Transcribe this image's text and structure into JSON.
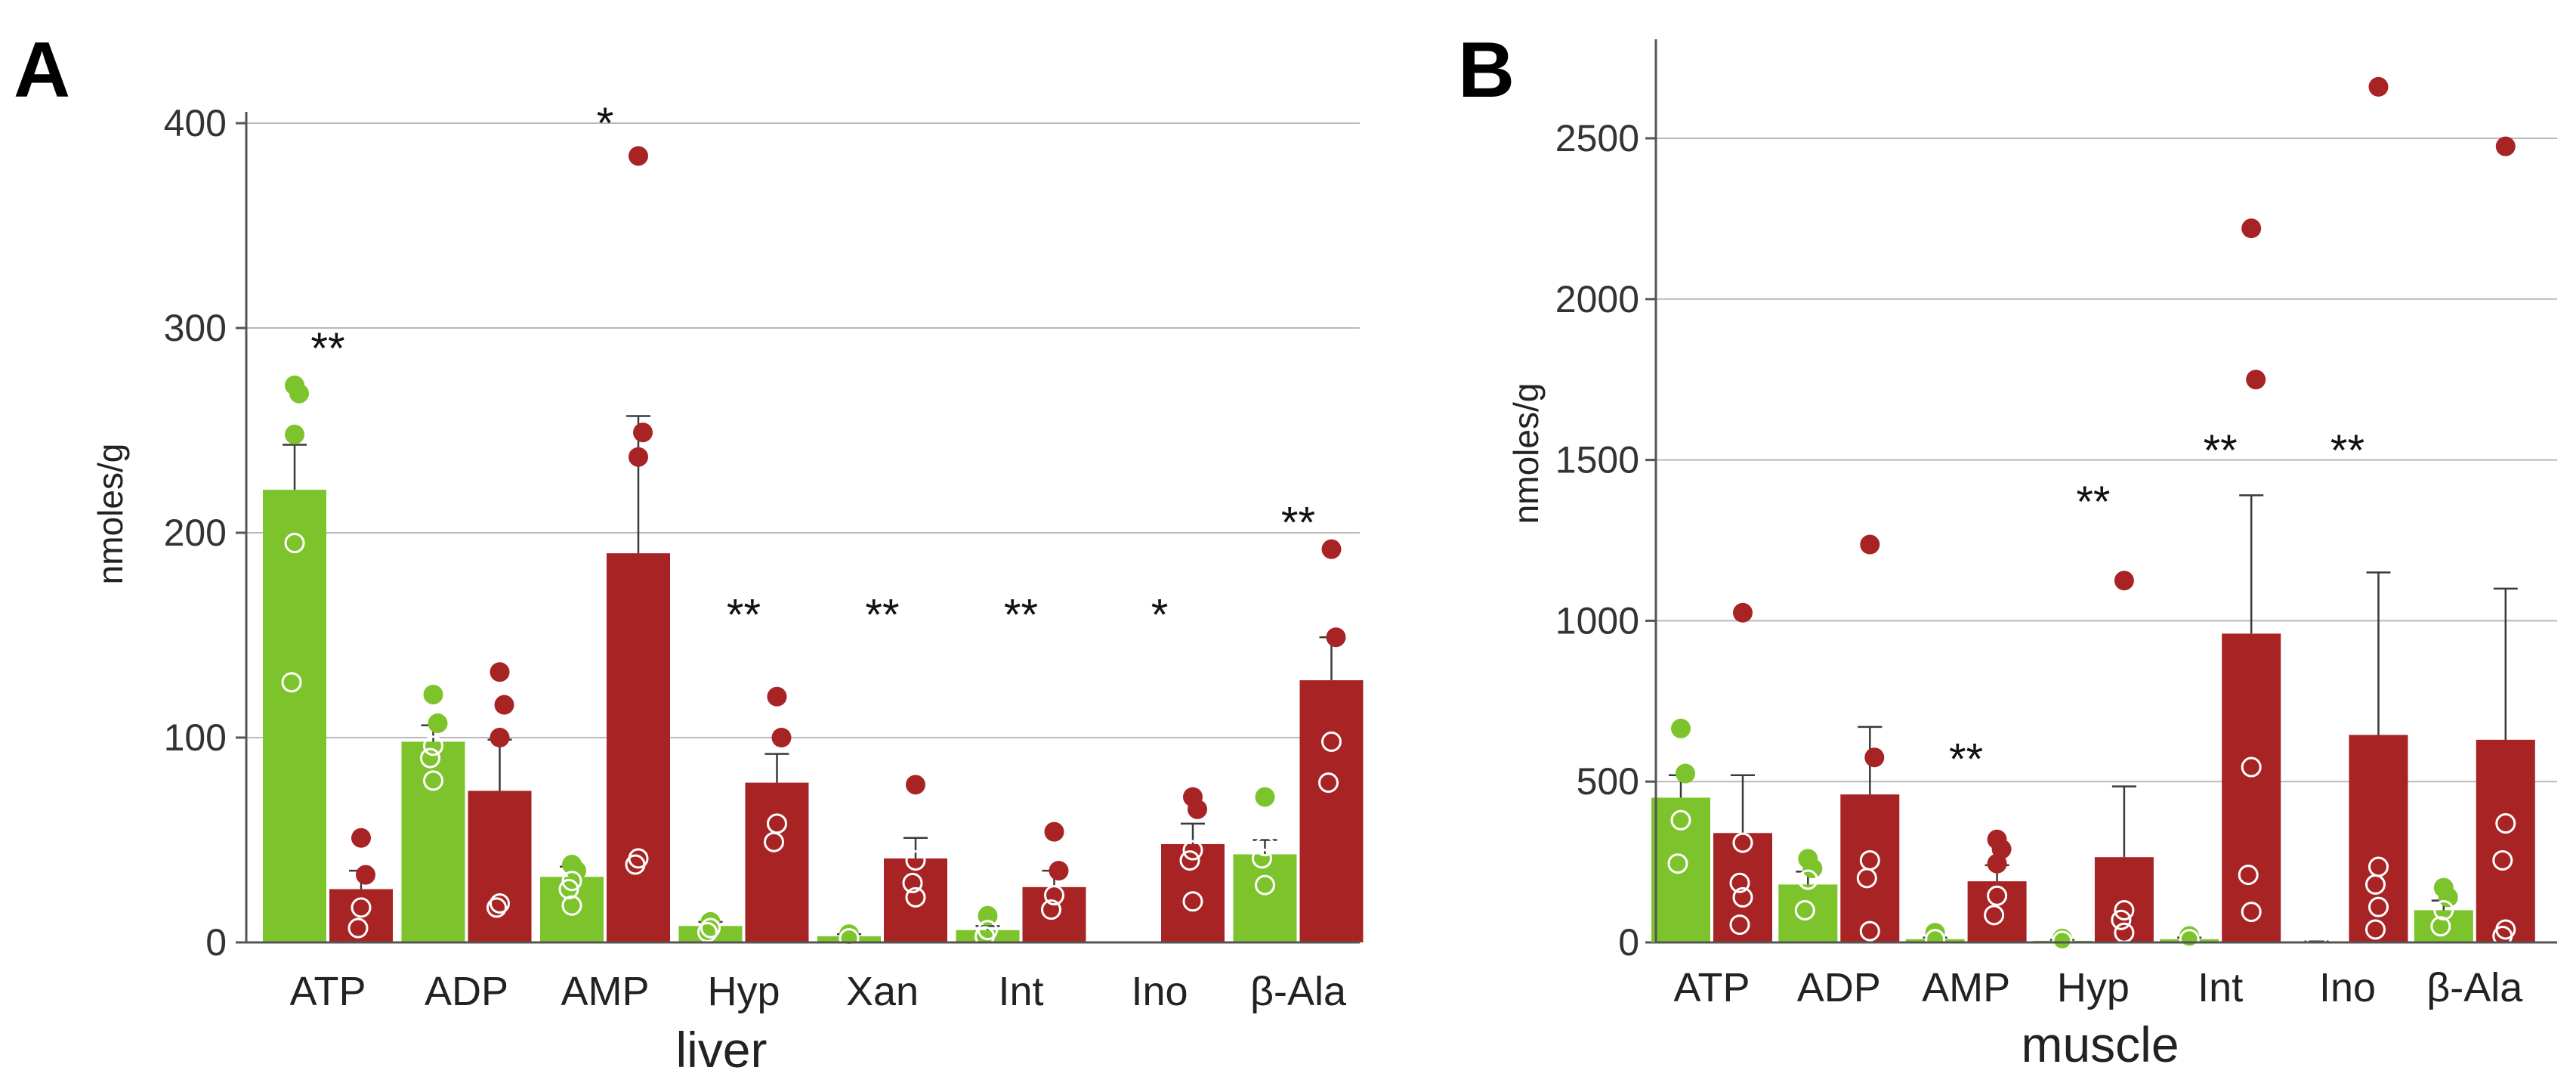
{
  "colors": {
    "control": "#7dc42c",
    "treated": "#a82424",
    "grid": "#b9b9b9",
    "axis": "#555555"
  },
  "chart_data": [
    {
      "panel": "A",
      "type": "bar",
      "title": "",
      "xlabel": "liver",
      "ylabel": "nmoles/g",
      "ylim": [
        0,
        400
      ],
      "yticks": [
        0,
        100,
        200,
        300,
        400
      ],
      "grid": true,
      "categories": [
        "ATP",
        "ADP",
        "AMP",
        "Hyp",
        "Xan",
        "Int",
        "Ino",
        "β-Ala"
      ],
      "series": [
        {
          "name": "control",
          "values": [
            221,
            98,
            32,
            8,
            3,
            6,
            0,
            43
          ],
          "errors": [
            22,
            8,
            5,
            2,
            1,
            2,
            0,
            7
          ],
          "points": [
            {
              "filled": [
                272,
                268,
                248
              ],
              "open": [
                195,
                127
              ]
            },
            {
              "filled": [
                121,
                107
              ],
              "open": [
                96,
                90,
                79
              ]
            },
            {
              "filled": [
                38,
                35
              ],
              "open": [
                30,
                26,
                18
              ]
            },
            {
              "filled": [
                10
              ],
              "open": [
                7,
                5
              ]
            },
            {
              "filled": [
                4
              ],
              "open": [
                2
              ]
            },
            {
              "filled": [
                13
              ],
              "open": [
                6,
                3
              ]
            },
            {
              "filled": [],
              "open": []
            },
            {
              "filled": [
                71
              ],
              "open": [
                47,
                41,
                28
              ]
            }
          ]
        },
        {
          "name": "treated",
          "values": [
            26,
            74,
            190,
            78,
            41,
            27,
            48,
            128
          ],
          "errors": [
            9,
            25,
            67,
            14,
            10,
            8,
            10,
            21
          ],
          "points": [
            {
              "filled": [
                51,
                33
              ],
              "open": [
                17,
                7
              ]
            },
            {
              "filled": [
                132,
                116,
                100
              ],
              "open": [
                19,
                17
              ]
            },
            {
              "filled": [
                384,
                249,
                237
              ],
              "open": [
                41,
                38
              ]
            },
            {
              "filled": [
                120,
                100
              ],
              "open": [
                58,
                49
              ]
            },
            {
              "filled": [
                77
              ],
              "open": [
                40,
                29,
                22
              ]
            },
            {
              "filled": [
                54,
                35
              ],
              "open": [
                23,
                16
              ]
            },
            {
              "filled": [
                71,
                65
              ],
              "open": [
                45,
                40,
                20
              ]
            },
            {
              "filled": [
                192,
                149
              ],
              "open": [
                98,
                78
              ]
            }
          ]
        }
      ],
      "significance": [
        {
          "category": "ATP",
          "label": "**",
          "y": 290
        },
        {
          "category": "AMP",
          "label": "*",
          "y": 400
        },
        {
          "category": "Hyp",
          "label": "**",
          "y": 160
        },
        {
          "category": "Xan",
          "label": "**",
          "y": 160
        },
        {
          "category": "Int",
          "label": "**",
          "y": 160
        },
        {
          "category": "Ino",
          "label": "*",
          "y": 160
        },
        {
          "category": "β-Ala",
          "label": "**",
          "y": 205
        }
      ]
    },
    {
      "panel": "B",
      "type": "bar",
      "title": "",
      "xlabel": "muscle",
      "ylabel": "nmoles/g",
      "ylim": [
        0,
        2800
      ],
      "yticks": [
        0,
        500,
        1000,
        1500,
        2000,
        2500
      ],
      "grid": true,
      "categories": [
        "ATP",
        "ADP",
        "AMP",
        "Hyp",
        "Int",
        "Ino",
        "β-Ala"
      ],
      "series": [
        {
          "name": "control",
          "values": [
            450,
            180,
            10,
            5,
            10,
            2,
            100
          ],
          "errors": [
            70,
            40,
            5,
            3,
            5,
            1,
            30
          ],
          "points": [
            {
              "filled": [
                665,
                525
              ],
              "open": [
                380,
                245
              ]
            },
            {
              "filled": [
                260,
                230
              ],
              "open": [
                195,
                100
              ]
            },
            {
              "filled": [
                30
              ],
              "open": [
                10
              ]
            },
            {
              "filled": [
                12
              ],
              "open": [
                5
              ]
            },
            {
              "filled": [
                20
              ],
              "open": [
                10
              ]
            },
            {
              "filled": [],
              "open": [
                10
              ]
            },
            {
              "filled": [
                170,
                140
              ],
              "open": [
                100,
                50
              ]
            }
          ]
        },
        {
          "name": "treated",
          "values": [
            340,
            460,
            190,
            265,
            960,
            645,
            630
          ],
          "errors": [
            180,
            210,
            50,
            220,
            430,
            505,
            470
          ],
          "points": [
            {
              "filled": [
                1025
              ],
              "open": [
                310,
                185,
                140,
                55
              ]
            },
            {
              "filled": [
                1237,
                575
              ],
              "open": [
                255,
                200,
                35
              ]
            },
            {
              "filled": [
                320,
                290,
                245
              ],
              "open": [
                145,
                85
              ]
            },
            {
              "filled": [
                1125
              ],
              "open": [
                100,
                70,
                30
              ]
            },
            {
              "filled": [
                2220,
                1750
              ],
              "open": [
                545,
                210,
                95
              ]
            },
            {
              "filled": [
                2660
              ],
              "open": [
                235,
                180,
                110,
                40
              ]
            },
            {
              "filled": [
                2475
              ],
              "open": [
                370,
                255,
                40,
                20
              ]
            }
          ]
        }
      ],
      "significance": [
        {
          "category": "AMP",
          "label": "**",
          "y": 570
        },
        {
          "category": "Hyp",
          "label": "**",
          "y": 1370
        },
        {
          "category": "Int",
          "label": "**",
          "y": 1530
        },
        {
          "category": "Ino",
          "label": "**",
          "y": 1530
        }
      ]
    }
  ]
}
